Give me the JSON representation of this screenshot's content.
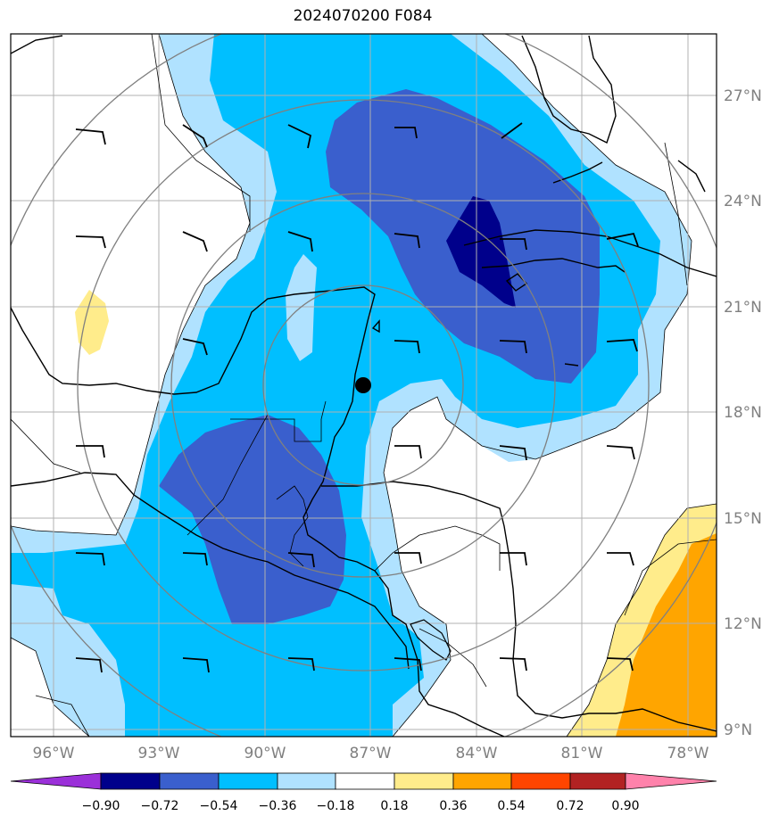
{
  "title": "2024070200 F084",
  "lat_labels": [
    "27°N",
    "24°N",
    "21°N",
    "18°N",
    "15°N",
    "12°N",
    "9°N"
  ],
  "lon_labels": [
    "96°W",
    "93°W",
    "90°W",
    "87°W",
    "84°W",
    "81°W",
    "78°W"
  ],
  "colorbar": {
    "ticks": [
      "−0.90",
      "−0.72",
      "−0.54",
      "−0.36",
      "−0.18",
      "0.18",
      "0.36",
      "0.54",
      "0.72",
      "0.90"
    ],
    "colors": [
      "#9b30d9",
      "#00008b",
      "#3a5fcd",
      "#00bfff",
      "#b0e2ff",
      "#ffffff",
      "#ffec8b",
      "#ffa500",
      "#ff4500",
      "#b22222",
      "#ff82ab"
    ]
  },
  "colors": {
    "contour_deep": "#00008b",
    "contour_dark": "#3a5fcd",
    "contour_mid": "#00bfff",
    "contour_light": "#b0e2ff",
    "contour_yellow": "#ffec8b",
    "contour_orange": "#ffa500",
    "range_ring": "#808080",
    "grid": "#b0b0b0"
  },
  "center_marker": "storm-center"
}
